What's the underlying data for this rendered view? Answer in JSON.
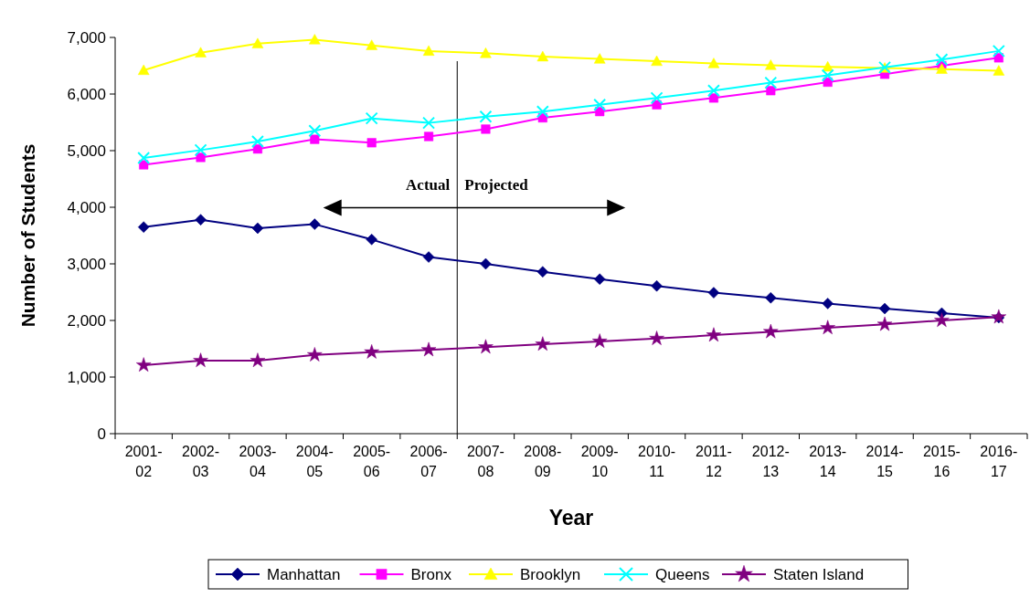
{
  "chart_data": {
    "type": "line",
    "xlabel": "Year",
    "ylabel": "Number of Students",
    "categories": [
      "2001-02",
      "2002-03",
      "2003-04",
      "2004-05",
      "2005-06",
      "2006-07",
      "2007-08",
      "2008-09",
      "2009-10",
      "2010-11",
      "2011-12",
      "2012-13",
      "2013-14",
      "2014-15",
      "2015-16",
      "2016-17"
    ],
    "ylim": [
      0,
      7000
    ],
    "yticks": [
      {
        "value": 0,
        "label": "0"
      },
      {
        "value": 1000,
        "label": "1,000"
      },
      {
        "value": 2000,
        "label": "2,000"
      },
      {
        "value": 3000,
        "label": "3,000"
      },
      {
        "value": 4000,
        "label": "4,000"
      },
      {
        "value": 5000,
        "label": "5,000"
      },
      {
        "value": 6000,
        "label": "6,000"
      },
      {
        "value": 7000,
        "label": "7,000"
      }
    ],
    "grid": false,
    "legend": "bottom",
    "series": [
      {
        "name": "Manhattan",
        "color": "#000080",
        "marker": "diamond",
        "values": [
          3650,
          3780,
          3630,
          3700,
          3430,
          3120,
          3000,
          2860,
          2730,
          2610,
          2490,
          2400,
          2300,
          2210,
          2130,
          2050
        ]
      },
      {
        "name": "Bronx",
        "color": "#ff00ff",
        "marker": "square",
        "values": [
          4750,
          4880,
          5030,
          5200,
          5140,
          5250,
          5380,
          5580,
          5690,
          5810,
          5930,
          6060,
          6210,
          6350,
          6500,
          6640
        ]
      },
      {
        "name": "Brooklyn",
        "color": "#ffff00",
        "marker": "triangle",
        "values": [
          6420,
          6730,
          6890,
          6960,
          6860,
          6760,
          6720,
          6660,
          6620,
          6580,
          6540,
          6510,
          6480,
          6460,
          6440,
          6410
        ]
      },
      {
        "name": "Queens",
        "color": "#00ffff",
        "marker": "cross",
        "values": [
          4870,
          5010,
          5160,
          5350,
          5570,
          5490,
          5600,
          5690,
          5810,
          5930,
          6060,
          6200,
          6330,
          6470,
          6610,
          6760
        ]
      },
      {
        "name": "Staten Island",
        "color": "#800080",
        "marker": "star",
        "values": [
          1210,
          1290,
          1290,
          1390,
          1440,
          1480,
          1530,
          1580,
          1630,
          1680,
          1740,
          1800,
          1870,
          1930,
          2000,
          2060
        ]
      }
    ],
    "annotations": [
      "Actual",
      "Projected"
    ]
  }
}
